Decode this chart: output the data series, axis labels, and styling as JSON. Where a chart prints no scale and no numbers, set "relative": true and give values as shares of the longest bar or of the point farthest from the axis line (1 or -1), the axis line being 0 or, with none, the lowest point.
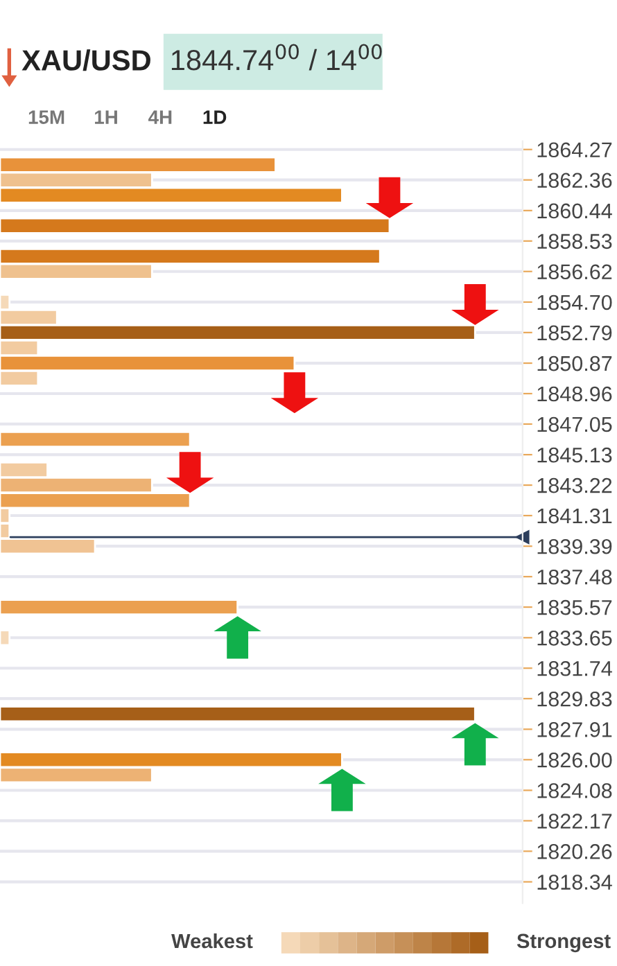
{
  "chart_data": {
    "type": "bar",
    "orientation": "horizontal",
    "relative": true,
    "title": "XAU/USD",
    "subtitle": "1844.74$^{00}$ / 14$^{00}$",
    "annotations": [
      "15M",
      "1H",
      "4H",
      "1D",
      "Weakest",
      "Strongest"
    ],
    "x": [
      1863.31,
      1862.36,
      1861.4,
      1859.49,
      1857.57,
      1856.62,
      1854.7,
      1853.74,
      1852.79,
      1851.83,
      1850.87,
      1849.92,
      1846.09,
      1844.18,
      1843.22,
      1842.26,
      1841.31,
      1840.35,
      1839.39,
      1835.57,
      1833.65,
      1828.87,
      1826.0,
      1825.04
    ],
    "values": [
      0.58,
      0.32,
      0.72,
      0.82,
      0.8,
      0.32,
      0.02,
      0.12,
      1,
      0.08,
      0.62,
      0.08,
      0.4,
      0.1,
      0.32,
      0.4,
      0.02,
      0.02,
      0.2,
      0.5,
      0.02,
      1,
      0.72,
      0.32
    ],
    "colors": [
      "#e8923a",
      "#efc18e",
      "#e38a22",
      "#d5791c",
      "#d5791c",
      "#efc18e",
      "#f5d9b8",
      "#f2cba0",
      "#a65f18",
      "#f2cba0",
      "#e8923a",
      "#f2cba0",
      "#eba050",
      "#f2cba0",
      "#edb274",
      "#eba050",
      "#f2cba0",
      "#f2cba0",
      "#f0c393",
      "#eba050",
      "#f5d9b8",
      "#a65f18",
      "#e38a22",
      "#edb274"
    ],
    "ylim": [
      1817.0,
      1864.8
    ],
    "yticks": [
      1864.27,
      1862.36,
      1860.44,
      1858.53,
      1856.62,
      {
        "value": 1854.7,
        "label": "1854.70"
      },
      1852.79,
      1850.87,
      1848.96,
      1847.05,
      1845.13,
      1843.22,
      1841.31,
      1839.39,
      1837.48,
      1835.57,
      1833.65,
      1831.74,
      1829.83,
      1827.91,
      {
        "value": 1826.0,
        "label": "1826.00"
      },
      1824.08,
      1822.17,
      1820.26,
      1818.34
    ],
    "ref_lines": [
      {
        "axis": "y",
        "value": 1839.96,
        "color": "#2c3e5c"
      }
    ],
    "grid": "y",
    "legend": false
  }
}
